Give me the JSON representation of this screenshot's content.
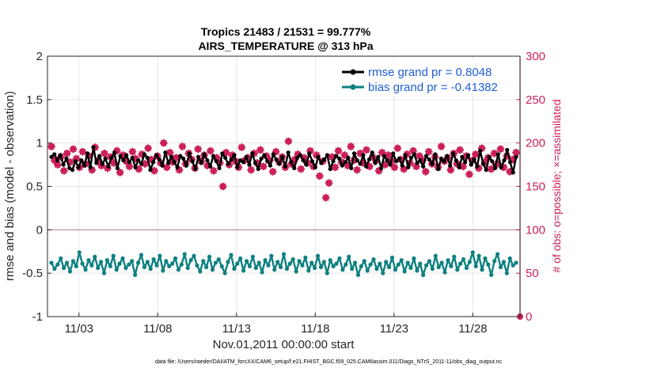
{
  "chart_data": {
    "type": "line",
    "title": "Tropics 21483 / 21531 = 99.777%",
    "subtitle": "AIRS_TEMPERATURE @ 313 hPa",
    "xlabel": "Nov.01,2011 00:00:00 start",
    "ylabel": "rmse and bias (model - observation)",
    "ylabel_right": "# of obs: o=possible; ×=assimilated",
    "ylim": [
      -1,
      2
    ],
    "ylim_right": [
      0,
      300
    ],
    "xlim": [
      1.0,
      31.0
    ],
    "y_ticks": [
      "-1",
      "-0.5",
      "0",
      "0.5",
      "1",
      "1.5",
      "2"
    ],
    "y_ticks_right": [
      "0",
      "50",
      "100",
      "150",
      "200",
      "250",
      "300"
    ],
    "x_tick_values": [
      3,
      8,
      13,
      18,
      23,
      28
    ],
    "x_tick_labels": [
      "11/03",
      "11/08",
      "11/13",
      "11/18",
      "11/23",
      "11/28"
    ],
    "footnote": "data file: /Users/raeder/DAI/ATM_forcXX/CAM6_setup/f.e21.FHIST_BGC.f09_025.CAM6assim.011/Diags_NTrS_2011-11/obs_diag_output.nc",
    "colors": {
      "rmse": "#000000",
      "bias": "#0f8080",
      "obs": "#cc1f5a",
      "zero_line": "#c8a0a8",
      "legend_text": "#1f5fd6"
    },
    "series": [
      {
        "name": "rmse grand pr = 0.8048",
        "axis": "left",
        "values": [
          0.84,
          0.87,
          0.8,
          0.86,
          0.75,
          0.82,
          0.71,
          0.69,
          0.79,
          0.72,
          0.8,
          0.74,
          0.88,
          0.72,
          0.95,
          0.77,
          0.85,
          0.76,
          0.82,
          0.73,
          0.83,
          0.89,
          0.71,
          0.85,
          0.8,
          0.86,
          0.78,
          0.83,
          0.72,
          0.8,
          0.76,
          0.87,
          0.83,
          0.69,
          0.78,
          0.86,
          0.81,
          0.74,
          0.89,
          0.77,
          0.84,
          0.78,
          0.72,
          0.85,
          0.82,
          0.74,
          0.88,
          0.79,
          0.7,
          0.84,
          0.77,
          0.87,
          0.8,
          0.73,
          0.85,
          0.79,
          0.71,
          0.88,
          0.83,
          0.76,
          0.81,
          0.86,
          0.72,
          0.8,
          0.78,
          0.84,
          0.75,
          0.88,
          0.77,
          0.7,
          0.82,
          0.86,
          0.79,
          0.74,
          0.87,
          0.81,
          0.76,
          0.84,
          0.73,
          0.89,
          0.78,
          0.71,
          0.83,
          0.86,
          0.8,
          0.75,
          0.88,
          0.79,
          0.72,
          0.84,
          0.77,
          0.81,
          0.86,
          0.7,
          0.79,
          0.85,
          0.82,
          0.74,
          0.78,
          0.83,
          0.71,
          0.88,
          0.8,
          0.76,
          0.86,
          0.73,
          0.81,
          0.89,
          0.77,
          0.84,
          0.71,
          0.85,
          0.8,
          0.75,
          0.88,
          0.79,
          0.82,
          0.74,
          0.86,
          0.72,
          0.83,
          0.87,
          0.77,
          0.8,
          0.73,
          0.85,
          0.81,
          0.76,
          0.87,
          0.7,
          0.82,
          0.79,
          0.85,
          0.74,
          0.88,
          0.8,
          0.72,
          0.84,
          0.78,
          0.86,
          0.75,
          0.81,
          0.73,
          0.91,
          0.76,
          0.69,
          0.84,
          0.79,
          0.71,
          0.87,
          0.72,
          0.8,
          0.92,
          0.78,
          0.66,
          0.84
        ]
      },
      {
        "name": "bias grand pr = -0.41382",
        "axis": "left",
        "values": [
          -0.38,
          -0.45,
          -0.4,
          -0.33,
          -0.44,
          -0.38,
          -0.48,
          -0.36,
          -0.42,
          -0.26,
          -0.39,
          -0.46,
          -0.35,
          -0.41,
          -0.31,
          -0.44,
          -0.37,
          -0.5,
          -0.35,
          -0.42,
          -0.3,
          -0.46,
          -0.39,
          -0.33,
          -0.44,
          -0.4,
          -0.36,
          -0.52,
          -0.38,
          -0.29,
          -0.43,
          -0.37,
          -0.45,
          -0.34,
          -0.41,
          -0.3,
          -0.47,
          -0.36,
          -0.42,
          -0.39,
          -0.33,
          -0.46,
          -0.4,
          -0.28,
          -0.44,
          -0.35,
          -0.3,
          -0.41,
          -0.48,
          -0.36,
          -0.43,
          -0.31,
          -0.46,
          -0.38,
          -0.34,
          -0.42,
          -0.5,
          -0.37,
          -0.29,
          -0.45,
          -0.39,
          -0.33,
          -0.47,
          -0.36,
          -0.42,
          -0.31,
          -0.44,
          -0.38,
          -0.49,
          -0.35,
          -0.41,
          -0.3,
          -0.46,
          -0.37,
          -0.43,
          -0.28,
          -0.45,
          -0.39,
          -0.34,
          -0.48,
          -0.36,
          -0.41,
          -0.32,
          -0.47,
          -0.38,
          -0.44,
          -0.3,
          -0.43,
          -0.37,
          -0.5,
          -0.35,
          -0.42,
          -0.39,
          -0.33,
          -0.46,
          -0.4,
          -0.31,
          -0.45,
          -0.38,
          -0.52,
          -0.42,
          -0.36,
          -0.47,
          -0.4,
          -0.34,
          -0.45,
          -0.39,
          -0.5,
          -0.37,
          -0.43,
          -0.32,
          -0.46,
          -0.4,
          -0.35,
          -0.48,
          -0.38,
          -0.44,
          -0.33,
          -0.47,
          -0.39,
          -0.52,
          -0.41,
          -0.36,
          -0.45,
          -0.3,
          -0.43,
          -0.38,
          -0.49,
          -0.35,
          -0.42,
          -0.31,
          -0.46,
          -0.39,
          -0.34,
          -0.44,
          -0.37,
          -0.26,
          -0.42,
          -0.3,
          -0.46,
          -0.33,
          -0.4,
          -0.52,
          -0.36,
          -0.28,
          -0.43,
          -0.37,
          -0.5,
          -0.33,
          -0.41,
          -0.38
        ]
      },
      {
        "name": "obs_count",
        "axis": "right",
        "values": [
          196,
          180,
          175,
          184,
          168,
          188,
          178,
          193,
          182,
          172,
          190,
          176,
          185,
          169,
          195,
          180,
          174,
          188,
          171,
          184,
          177,
          191,
          166,
          186,
          179,
          173,
          190,
          182,
          170,
          187,
          176,
          194,
          181,
          168,
          185,
          177,
          200,
          172,
          189,
          178,
          183,
          169,
          196,
          176,
          188,
          181,
          171,
          193,
          179,
          186,
          174,
          191,
          168,
          183,
          177,
          150,
          189,
          175,
          186,
          179,
          172,
          195,
          180,
          183,
          169,
          188,
          177,
          192,
          173,
          185,
          180,
          167,
          190,
          178,
          184,
          172,
          202,
          176,
          181,
          187,
          170,
          183,
          177,
          191,
          173,
          186,
          162,
          179,
          137,
          154,
          184,
          172,
          191,
          178,
          186,
          174,
          196,
          180,
          169,
          188,
          177,
          192,
          173,
          184,
          180,
          168,
          189,
          175,
          186,
          179,
          172,
          194,
          181,
          170,
          187,
          177,
          191,
          173,
          185,
          180,
          167,
          190,
          176,
          184,
          172,
          196,
          179,
          183,
          169,
          188,
          176,
          192,
          173,
          185,
          164,
          180,
          187,
          171,
          194,
          178,
          183,
          170,
          188,
          176,
          193,
          172,
          185,
          167,
          181,
          189
        ]
      }
    ]
  }
}
